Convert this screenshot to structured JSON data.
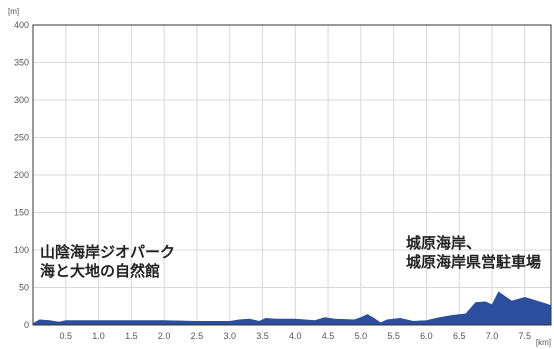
{
  "chart_data": {
    "type": "area",
    "title": "",
    "xlabel": "",
    "ylabel": "",
    "x_unit": "[km]",
    "y_unit": "[m]",
    "xlim": [
      0,
      7.9
    ],
    "ylim": [
      0,
      400
    ],
    "x_ticks": [
      "0.5",
      "1.0",
      "1.5",
      "2.0",
      "2.5",
      "3.0",
      "3.5",
      "4.0",
      "4.5",
      "5.0",
      "5.5",
      "6.0",
      "6.5",
      "7.0",
      "7.5"
    ],
    "y_ticks": [
      "0",
      "50",
      "100",
      "150",
      "200",
      "250",
      "300",
      "350",
      "400"
    ],
    "grid": true,
    "fill_color": "#2b4f9e",
    "series": [
      {
        "x": [
          0.0,
          0.1,
          0.25,
          0.4,
          0.5,
          1.0,
          1.5,
          2.0,
          2.5,
          3.0,
          3.15,
          3.3,
          3.45,
          3.55,
          3.7,
          4.0,
          4.3,
          4.45,
          4.6,
          4.9,
          5.0,
          5.1,
          5.2,
          5.3,
          5.4,
          5.6,
          5.8,
          6.0,
          6.2,
          6.4,
          6.6,
          6.75,
          6.9,
          7.0,
          7.1,
          7.3,
          7.5,
          7.65,
          7.8,
          7.9
        ],
        "values": [
          2,
          7,
          6,
          4,
          6,
          6,
          6,
          6,
          5,
          5,
          7,
          8,
          5,
          9,
          8,
          8,
          6,
          10,
          8,
          7,
          10,
          14,
          9,
          3,
          7,
          9,
          5,
          6,
          10,
          13,
          15,
          30,
          31,
          27,
          44,
          32,
          37,
          33,
          29,
          26
        ]
      }
    ],
    "annotations": [
      {
        "lines": [
          "山陰海岸ジオパーク",
          "海と大地の自然館"
        ],
        "anchor_x": 0.0
      },
      {
        "lines": [
          "城原海岸、",
          "城原海岸県営駐車場"
        ],
        "anchor_x": 7.9
      }
    ]
  }
}
